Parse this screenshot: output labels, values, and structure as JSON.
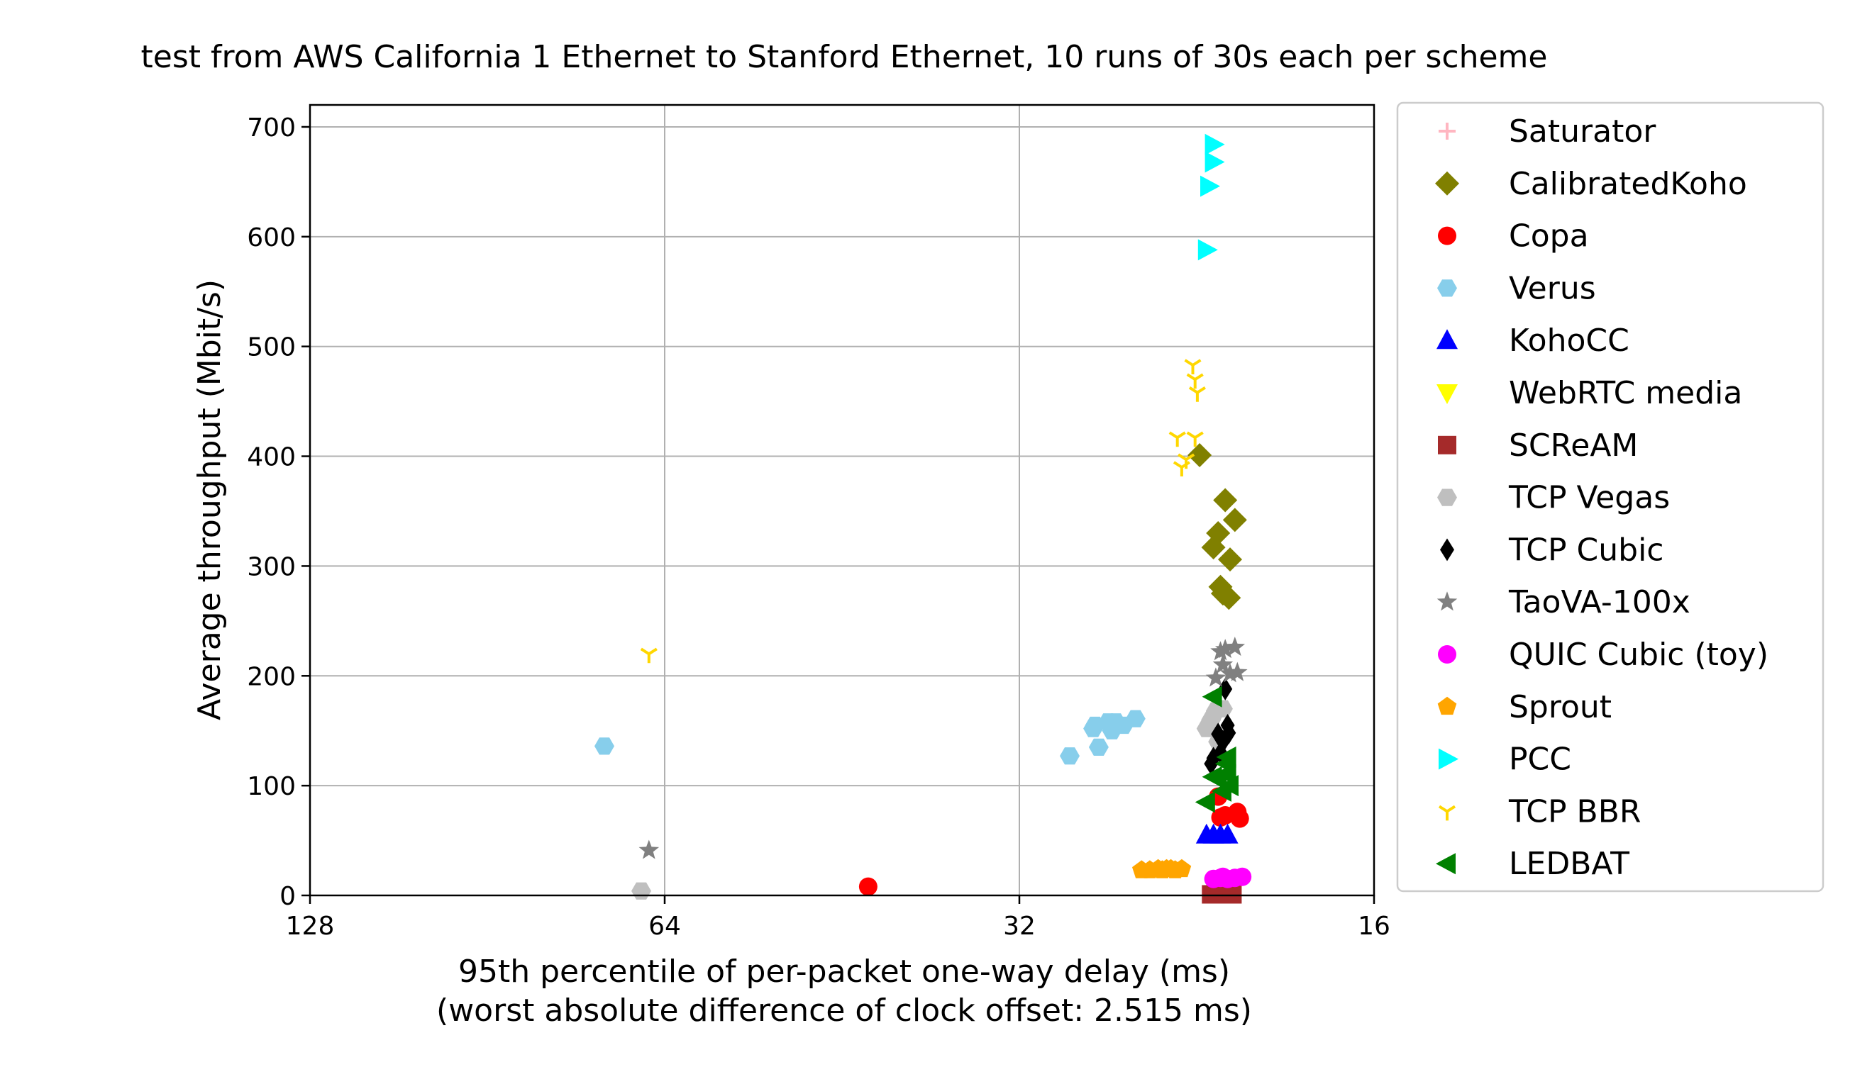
{
  "chart_data": {
    "type": "scatter",
    "title": "test from AWS California 1 Ethernet to Stanford Ethernet, 10 runs of 30s each per scheme",
    "xlabel": "95th percentile of per-packet one-way delay (ms)",
    "xlabel2": "(worst absolute difference of clock offset: 2.515 ms)",
    "ylabel": "Average throughput (Mbit/s)",
    "x_scale": "log2-reversed",
    "xlim": [
      128,
      16
    ],
    "ylim": [
      0,
      720
    ],
    "xticks": [
      128,
      64,
      32,
      16
    ],
    "xtick_labels": [
      "128",
      "64",
      "32",
      "16"
    ],
    "yticks": [
      0,
      100,
      200,
      300,
      400,
      500,
      600,
      700
    ],
    "ytick_labels": [
      "0",
      "100",
      "200",
      "300",
      "400",
      "500",
      "600",
      "700"
    ],
    "grid": true,
    "legend_position": "outside-right",
    "series": [
      {
        "name": "Saturator",
        "marker": "plus",
        "color": "#ffb6c1",
        "points": []
      },
      {
        "name": "CalibratedKoho",
        "marker": "diamond",
        "color": "#808000",
        "points": [
          [
            22.5,
            401
          ],
          [
            21.7,
            330
          ],
          [
            21.9,
            317
          ],
          [
            21.4,
            360
          ],
          [
            21.0,
            342
          ],
          [
            21.2,
            306
          ],
          [
            21.6,
            281
          ],
          [
            21.25,
            271
          ],
          [
            21.5,
            275
          ]
        ]
      },
      {
        "name": "Copa",
        "marker": "circle",
        "color": "#ff0000",
        "points": [
          [
            43,
            8
          ],
          [
            20.8,
            70
          ],
          [
            20.9,
            76
          ],
          [
            21.6,
            71
          ],
          [
            21.7,
            90
          ],
          [
            21.4,
            73
          ]
        ]
      },
      {
        "name": "Verus",
        "marker": "hexagon",
        "color": "#87ceeb",
        "points": [
          [
            72,
            136
          ],
          [
            29,
            127
          ],
          [
            27.4,
            135
          ],
          [
            27.6,
            155
          ],
          [
            26.9,
            158
          ],
          [
            26.5,
            158
          ],
          [
            25.5,
            161
          ],
          [
            26.1,
            155
          ],
          [
            26.7,
            150
          ],
          [
            27.7,
            152
          ]
        ]
      },
      {
        "name": "KohoCC",
        "marker": "triangle-up",
        "color": "#0000ff",
        "points": [
          [
            22.2,
            55
          ],
          [
            21.9,
            55
          ],
          [
            21.6,
            55
          ],
          [
            21.3,
            55
          ]
        ]
      },
      {
        "name": "WebRTC media",
        "marker": "triangle-down",
        "color": "#ffff00",
        "points": []
      },
      {
        "name": "SCReAM",
        "marker": "square",
        "color": "#a52a2a",
        "points": [
          [
            22.0,
            1
          ],
          [
            21.7,
            1
          ],
          [
            21.4,
            1
          ],
          [
            21.1,
            1
          ],
          [
            21.6,
            1
          ],
          [
            21.9,
            1
          ]
        ]
      },
      {
        "name": "TCP Vegas",
        "marker": "hexagon",
        "color": "#bfbfbf",
        "points": [
          [
            67,
            4
          ],
          [
            22.0,
            160
          ],
          [
            21.8,
            168
          ],
          [
            21.5,
            170
          ],
          [
            22.2,
            152
          ],
          [
            21.7,
            140
          ]
        ]
      },
      {
        "name": "TCP Cubic",
        "marker": "thin-diamond",
        "color": "#000000",
        "points": [
          [
            21.4,
            188
          ],
          [
            21.3,
            155
          ],
          [
            21.5,
            140
          ],
          [
            21.6,
            130
          ],
          [
            21.9,
            125
          ],
          [
            21.7,
            147
          ],
          [
            21.25,
            148
          ],
          [
            22.0,
            120
          ]
        ]
      },
      {
        "name": "TaoVA-100x",
        "marker": "star",
        "color": "#808080",
        "points": [
          [
            66,
            41
          ],
          [
            21.4,
            224
          ],
          [
            21.0,
            226
          ],
          [
            21.2,
            202
          ],
          [
            21.6,
            222
          ],
          [
            21.8,
            198
          ],
          [
            21.5,
            210
          ],
          [
            20.9,
            203
          ]
        ]
      },
      {
        "name": "QUIC Cubic (toy)",
        "marker": "circle",
        "color": "#ff00ff",
        "points": [
          [
            21.6,
            16
          ],
          [
            21.3,
            15
          ],
          [
            21.0,
            16
          ],
          [
            20.7,
            17
          ],
          [
            21.9,
            15
          ],
          [
            21.5,
            17
          ]
        ]
      },
      {
        "name": "Sprout",
        "marker": "pentagon",
        "color": "#ffa500",
        "points": [
          [
            24.8,
            23
          ],
          [
            24.4,
            24
          ],
          [
            24.0,
            24
          ],
          [
            23.6,
            23
          ],
          [
            23.3,
            24
          ],
          [
            25.2,
            23
          ],
          [
            24.2,
            23
          ],
          [
            23.8,
            24
          ]
        ]
      },
      {
        "name": "PCC",
        "marker": "triangle-right",
        "color": "#00ffff",
        "points": [
          [
            21.9,
            684
          ],
          [
            21.9,
            668
          ],
          [
            22.1,
            646
          ],
          [
            22.2,
            588
          ]
        ]
      },
      {
        "name": "TCP BBR",
        "marker": "tri-down",
        "color": "#ffd700",
        "points": [
          [
            66,
            220
          ],
          [
            22.8,
            483
          ],
          [
            22.7,
            470
          ],
          [
            22.6,
            458
          ],
          [
            23.5,
            417
          ],
          [
            22.7,
            417
          ],
          [
            23.3,
            390
          ],
          [
            23.1,
            397
          ]
        ]
      },
      {
        "name": "LEDBAT",
        "marker": "triangle-left",
        "color": "#008000",
        "points": [
          [
            21.9,
            181
          ],
          [
            21.3,
            126
          ],
          [
            21.35,
            120
          ],
          [
            21.3,
            110
          ],
          [
            21.5,
            95
          ],
          [
            21.9,
            108
          ],
          [
            22.2,
            85
          ],
          [
            21.7,
            107
          ],
          [
            21.2,
            100
          ]
        ]
      }
    ]
  }
}
